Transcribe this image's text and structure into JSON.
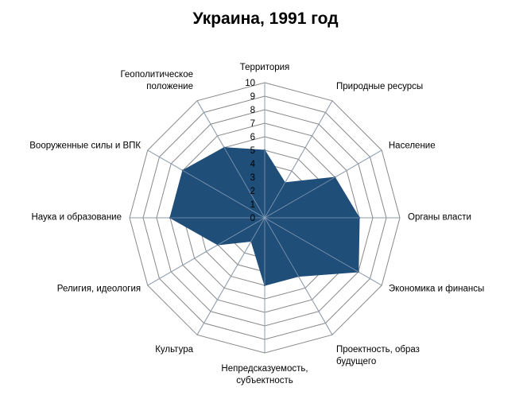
{
  "chart_data": {
    "type": "radar",
    "title": "Украина, 1991 год",
    "range": [
      0,
      10
    ],
    "ticks": [
      "0",
      "1",
      "2",
      "3",
      "4",
      "5",
      "6",
      "7",
      "8",
      "9",
      "10"
    ],
    "categories": [
      [
        "Территория"
      ],
      [
        "Природные  ресурсы"
      ],
      [
        "Население"
      ],
      [
        "Органы власти"
      ],
      [
        "Экономика и финансы"
      ],
      [
        "Проектность,  образ",
        "будущего"
      ],
      [
        "Непредсказуемость,",
        "субъектность"
      ],
      [
        "Культура"
      ],
      [
        "Религия, идеология"
      ],
      [
        "Наука и образование"
      ],
      [
        "Вооруженные  силы и ВПК"
      ],
      [
        "Геополитическое",
        "положение"
      ]
    ],
    "series": [
      {
        "values": [
          5,
          3,
          6,
          7,
          8,
          5,
          5,
          2,
          4,
          7,
          7,
          6
        ],
        "color": "#1f4e79"
      }
    ],
    "grid": true,
    "legend": "none"
  }
}
